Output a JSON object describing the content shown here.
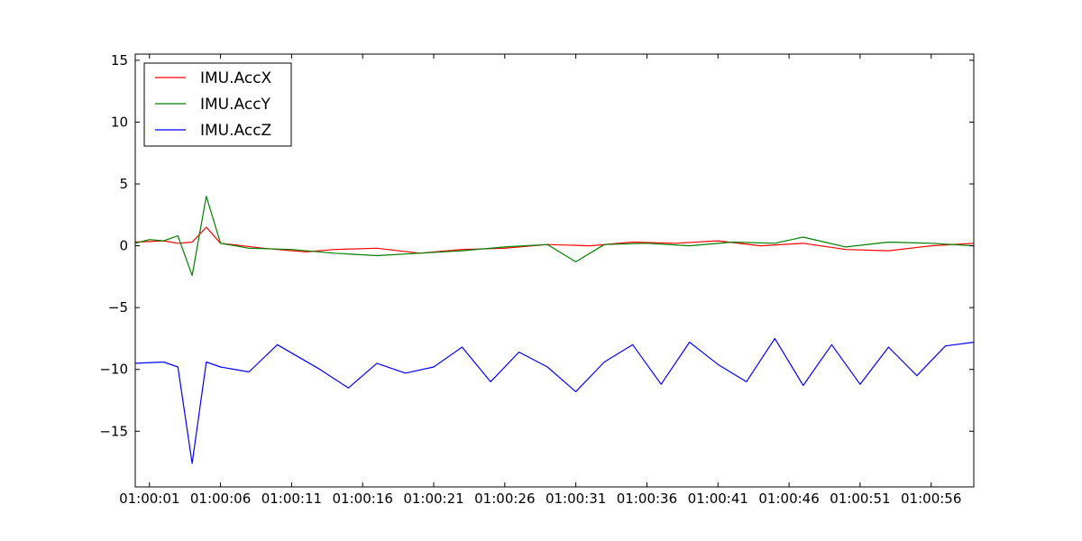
{
  "chart_data": {
    "type": "line",
    "title": "",
    "xlabel": "",
    "ylabel": "",
    "x_time_range": [
      "01:00:00",
      "01:00:59"
    ],
    "xticks": [
      "01:00:01",
      "01:00:06",
      "01:00:11",
      "01:00:16",
      "01:00:21",
      "01:00:26",
      "01:00:31",
      "01:00:36",
      "01:00:41",
      "01:00:46",
      "01:00:51",
      "01:00:56"
    ],
    "ylim": [
      -19.5,
      15.5
    ],
    "yticks": [
      15,
      10,
      5,
      0,
      -5,
      -10,
      -15
    ],
    "ytick_labels": [
      "15",
      "10",
      "5",
      "0",
      "−5",
      "−10",
      "−15"
    ],
    "grid": false,
    "legend_position": "top-left",
    "series": [
      {
        "name": "IMU.AccX",
        "color": "#ff0000",
        "x": [
          "01:00:00",
          "01:00:02",
          "01:00:03",
          "01:00:04",
          "01:00:05",
          "01:00:06",
          "01:00:09",
          "01:00:12",
          "01:00:14",
          "01:00:17",
          "01:00:20",
          "01:00:23",
          "01:00:26",
          "01:00:29",
          "01:00:32",
          "01:00:35",
          "01:00:38",
          "01:00:41",
          "01:00:44",
          "01:00:47",
          "01:00:50",
          "01:00:53",
          "01:00:56",
          "01:00:59"
        ],
        "y": [
          0.3,
          0.4,
          0.2,
          0.3,
          1.5,
          0.2,
          -0.2,
          -0.5,
          -0.3,
          -0.2,
          -0.6,
          -0.3,
          -0.2,
          0.1,
          0.0,
          0.3,
          0.2,
          0.4,
          0.0,
          0.2,
          -0.3,
          -0.4,
          0.0,
          0.2
        ]
      },
      {
        "name": "IMU.AccY",
        "color": "#008000",
        "x": [
          "01:00:00",
          "01:00:01",
          "01:00:02",
          "01:00:03",
          "01:00:04",
          "01:00:05",
          "01:00:06",
          "01:00:08",
          "01:00:11",
          "01:00:14",
          "01:00:17",
          "01:00:20",
          "01:00:23",
          "01:00:26",
          "01:00:29",
          "01:00:31",
          "01:00:33",
          "01:00:36",
          "01:00:39",
          "01:00:42",
          "01:00:45",
          "01:00:47",
          "01:00:50",
          "01:00:53",
          "01:00:56",
          "01:00:59"
        ],
        "y": [
          0.2,
          0.5,
          0.4,
          0.8,
          -2.4,
          4.0,
          0.2,
          -0.2,
          -0.3,
          -0.6,
          -0.8,
          -0.6,
          -0.4,
          -0.1,
          0.1,
          -1.3,
          0.1,
          0.2,
          0.0,
          0.3,
          0.2,
          0.7,
          -0.1,
          0.3,
          0.2,
          0.0
        ]
      },
      {
        "name": "IMU.AccZ",
        "color": "#0000ff",
        "x": [
          "01:00:00",
          "01:00:02",
          "01:00:03",
          "01:00:04",
          "01:00:05",
          "01:00:06",
          "01:00:08",
          "01:00:10",
          "01:00:13",
          "01:00:15",
          "01:00:17",
          "01:00:19",
          "01:00:21",
          "01:00:23",
          "01:00:25",
          "01:00:27",
          "01:00:29",
          "01:00:31",
          "01:00:33",
          "01:00:35",
          "01:00:37",
          "01:00:39",
          "01:00:41",
          "01:00:43",
          "01:00:45",
          "01:00:47",
          "01:00:49",
          "01:00:51",
          "01:00:53",
          "01:00:55",
          "01:00:57",
          "01:00:59"
        ],
        "y": [
          -9.5,
          -9.4,
          -9.8,
          -17.6,
          -9.4,
          -9.8,
          -10.2,
          -8.0,
          -10.0,
          -11.5,
          -9.5,
          -10.3,
          -9.8,
          -8.2,
          -11.0,
          -8.6,
          -9.8,
          -11.8,
          -9.4,
          -8.0,
          -11.2,
          -7.8,
          -9.6,
          -11.0,
          -7.5,
          -11.3,
          -8.0,
          -11.2,
          -8.2,
          -10.5,
          -8.1,
          -7.8
        ]
      }
    ]
  }
}
